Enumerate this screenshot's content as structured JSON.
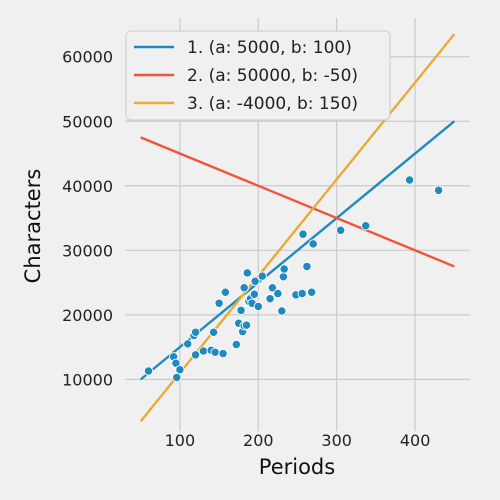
{
  "chart_data": {
    "type": "scatter",
    "title": "",
    "xlabel": "Periods",
    "ylabel": "Characters",
    "xlim": [
      30,
      470
    ],
    "ylim": [
      2000,
      66000
    ],
    "xticks": [
      100,
      200,
      300,
      400
    ],
    "yticks": [
      10000,
      20000,
      30000,
      40000,
      50000,
      60000
    ],
    "grid": true,
    "legend_position": "top-left",
    "point_color": "#1f8ac0",
    "points": [
      {
        "x": 60,
        "y": 11300
      },
      {
        "x": 92,
        "y": 13500
      },
      {
        "x": 95,
        "y": 12500
      },
      {
        "x": 96,
        "y": 10300
      },
      {
        "x": 100,
        "y": 11500
      },
      {
        "x": 110,
        "y": 15500
      },
      {
        "x": 118,
        "y": 16800
      },
      {
        "x": 120,
        "y": 17300
      },
      {
        "x": 120,
        "y": 13800
      },
      {
        "x": 130,
        "y": 14400
      },
      {
        "x": 140,
        "y": 14500
      },
      {
        "x": 143,
        "y": 17300
      },
      {
        "x": 145,
        "y": 14200
      },
      {
        "x": 150,
        "y": 21800
      },
      {
        "x": 155,
        "y": 14000
      },
      {
        "x": 158,
        "y": 23500
      },
      {
        "x": 172,
        "y": 15400
      },
      {
        "x": 175,
        "y": 18700
      },
      {
        "x": 178,
        "y": 20700
      },
      {
        "x": 180,
        "y": 17400
      },
      {
        "x": 182,
        "y": 18300
      },
      {
        "x": 182,
        "y": 24200
      },
      {
        "x": 185,
        "y": 18400
      },
      {
        "x": 186,
        "y": 26500
      },
      {
        "x": 188,
        "y": 22100
      },
      {
        "x": 190,
        "y": 22500
      },
      {
        "x": 192,
        "y": 21800
      },
      {
        "x": 195,
        "y": 23200
      },
      {
        "x": 196,
        "y": 25200
      },
      {
        "x": 200,
        "y": 21300
      },
      {
        "x": 205,
        "y": 26000
      },
      {
        "x": 215,
        "y": 22500
      },
      {
        "x": 218,
        "y": 24200
      },
      {
        "x": 225,
        "y": 23300
      },
      {
        "x": 230,
        "y": 20600
      },
      {
        "x": 232,
        "y": 25900
      },
      {
        "x": 233,
        "y": 27100
      },
      {
        "x": 248,
        "y": 23100
      },
      {
        "x": 256,
        "y": 23300
      },
      {
        "x": 257,
        "y": 32500
      },
      {
        "x": 262,
        "y": 27500
      },
      {
        "x": 268,
        "y": 23500
      },
      {
        "x": 270,
        "y": 31000
      },
      {
        "x": 305,
        "y": 33100
      },
      {
        "x": 337,
        "y": 33800
      },
      {
        "x": 393,
        "y": 40900
      },
      {
        "x": 430,
        "y": 39300
      }
    ],
    "lines": [
      {
        "name": "1. (a: 5000, b: 100)",
        "a": 5000,
        "b": 100,
        "color": "#1f8ac0",
        "x_range": [
          50,
          450
        ]
      },
      {
        "name": "2. (a: 50000, b: -50)",
        "a": 50000,
        "b": -50,
        "color": "#f0543a",
        "x_range": [
          50,
          450
        ]
      },
      {
        "name": "3. (a: -4000, b: 150)",
        "a": -4000,
        "b": 150,
        "color": "#e8ab35",
        "x_range": [
          50,
          450
        ]
      }
    ]
  }
}
